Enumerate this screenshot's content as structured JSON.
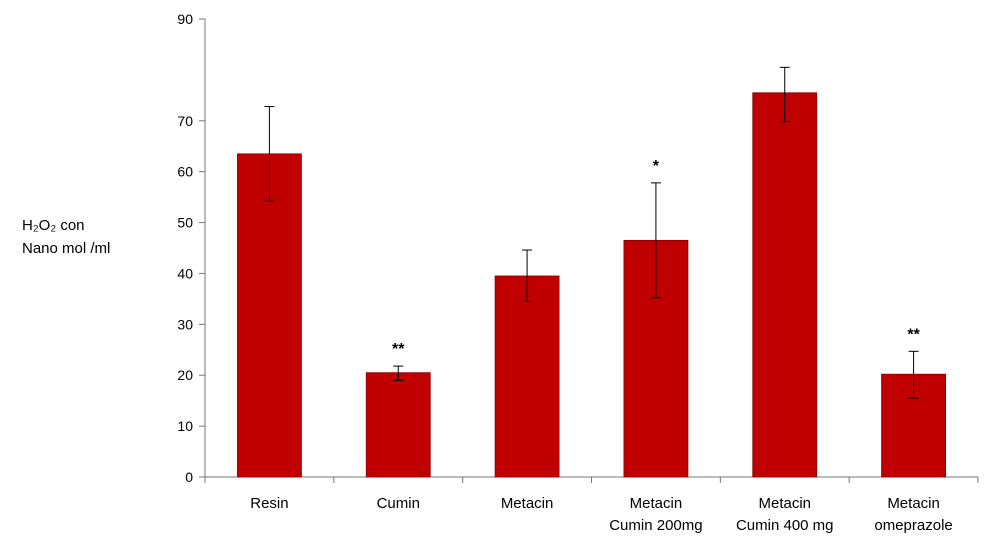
{
  "chart_data": {
    "type": "bar",
    "ylabel_lines": [
      "H₂O₂ con",
      "Nano mol /ml"
    ],
    "categories": [
      [
        "Resin"
      ],
      [
        "Cumin"
      ],
      [
        "Metacin"
      ],
      [
        "Metacin",
        "Cumin 200mg"
      ],
      [
        "Metacin",
        "Cumin 400 mg"
      ],
      [
        "Metacin",
        "omeprazole"
      ]
    ],
    "values": [
      63.5,
      20.5,
      39.5,
      46.5,
      75.5,
      20.2
    ],
    "error_low": [
      54.2,
      19.0,
      34.5,
      35.2,
      69.8,
      15.5
    ],
    "error_high": [
      72.8,
      21.8,
      44.6,
      57.8,
      80.5,
      24.7
    ],
    "significance": [
      "",
      "**",
      "",
      "*",
      "",
      "**"
    ],
    "yticks": [
      0,
      10,
      20,
      30,
      40,
      50,
      60,
      70,
      90
    ],
    "ylim": [
      0,
      90
    ],
    "bar_color": "#c00000",
    "grid": false
  }
}
